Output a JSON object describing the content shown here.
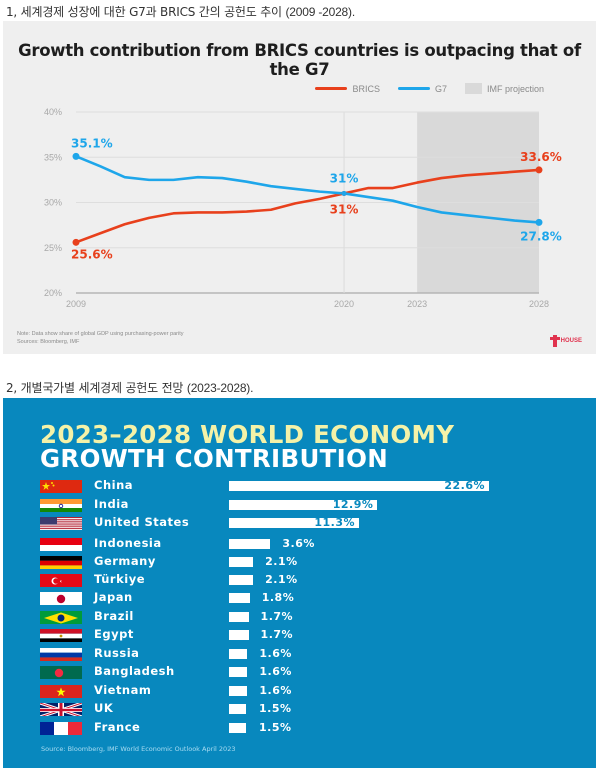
{
  "captions": {
    "first": "1, 세계경제 성장에 대한 G7과 BRICS 간의 공헌도 추이",
    "first_range": "(2009 -2028).",
    "second": "2, 개별국가별 세계경제 공헌도 전망",
    "second_range": "(2023-2028)."
  },
  "colors": {
    "brics": "#e8401c",
    "g7": "#1ea6ea",
    "projection": "#d9d9d9",
    "chart1_bg": "#efefef",
    "chart2_bg": "#0888be",
    "chart2_title_accent": "#f4f2a8"
  },
  "chart_data": [
    {
      "type": "line",
      "title": "Growth contribution from BRICS countries is outpacing that of the G7",
      "xlabel": "",
      "ylabel": "",
      "ylim": [
        20,
        40
      ],
      "xlim": [
        2009,
        2028
      ],
      "y_ticks": [
        "20%",
        "25%",
        "30%",
        "35%",
        "40%"
      ],
      "x_ticks": [
        "2009",
        "2020",
        "2023",
        "2028"
      ],
      "grid": true,
      "legend": {
        "placement": "top-right",
        "entries": [
          "BRICS",
          "G7",
          "IMF projection"
        ]
      },
      "projection_band": {
        "label": "IMF projection",
        "from": 2023,
        "to": 2028
      },
      "x": [
        2009,
        2010,
        2011,
        2012,
        2013,
        2014,
        2015,
        2016,
        2017,
        2018,
        2019,
        2020,
        2021,
        2022,
        2023,
        2024,
        2025,
        2026,
        2027,
        2028
      ],
      "series": [
        {
          "name": "BRICS",
          "values": [
            25.6,
            26.6,
            27.6,
            28.3,
            28.8,
            28.9,
            28.9,
            29.0,
            29.2,
            29.9,
            30.4,
            31.0,
            31.6,
            31.6,
            32.2,
            32.7,
            33.0,
            33.2,
            33.4,
            33.6
          ]
        },
        {
          "name": "G7",
          "values": [
            35.1,
            34.0,
            32.8,
            32.5,
            32.5,
            32.8,
            32.7,
            32.3,
            31.8,
            31.5,
            31.2,
            31.0,
            30.6,
            30.2,
            29.5,
            28.9,
            28.6,
            28.3,
            28.0,
            27.8
          ]
        }
      ],
      "annotations": [
        {
          "series": "G7",
          "x": 2009,
          "label": "35.1%"
        },
        {
          "series": "BRICS",
          "x": 2009,
          "label": "25.6%"
        },
        {
          "series": "G7",
          "x": 2020,
          "label": "31%"
        },
        {
          "series": "BRICS",
          "x": 2020,
          "label": "31%"
        },
        {
          "series": "BRICS",
          "x": 2028,
          "label": "33.6%"
        },
        {
          "series": "G7",
          "x": 2028,
          "label": "27.8%"
        }
      ],
      "notes": [
        "Note: Data show share of global GDP using purchasing-power parity",
        "Sources: Bloomberg, IMF"
      ],
      "logo": "HOUSE"
    },
    {
      "type": "bar",
      "orientation": "horizontal",
      "title_line1": "2023–2028 WORLD ECONOMY",
      "title_line2": "GROWTH CONTRIBUTION",
      "categories": [
        "China",
        "India",
        "United States",
        "Indonesia",
        "Germany",
        "Türkiye",
        "Japan",
        "Brazil",
        "Egypt",
        "Russia",
        "Bangladesh",
        "Vietnam",
        "UK",
        "France"
      ],
      "values": [
        22.6,
        12.9,
        11.3,
        3.6,
        2.1,
        2.1,
        1.8,
        1.7,
        1.7,
        1.6,
        1.6,
        1.6,
        1.5,
        1.5
      ],
      "labels": [
        "22.6%",
        "12.9%",
        "11.3%",
        "3.6%",
        "2.1%",
        "2.1%",
        "1.8%",
        "1.7%",
        "1.7%",
        "1.6%",
        "1.6%",
        "1.6%",
        "1.5%",
        "1.5%"
      ],
      "flags": [
        "china-flag",
        "india-flag",
        "usa-flag",
        "indonesia-flag",
        "germany-flag",
        "turkiye-flag",
        "japan-flag",
        "brazil-flag",
        "egypt-flag",
        "russia-flag",
        "bangladesh-flag",
        "vietnam-flag",
        "uk-flag",
        "france-flag"
      ],
      "unit": "%",
      "source": "Source: Bloomberg, IMF World Economic Outlook April 2023"
    }
  ]
}
